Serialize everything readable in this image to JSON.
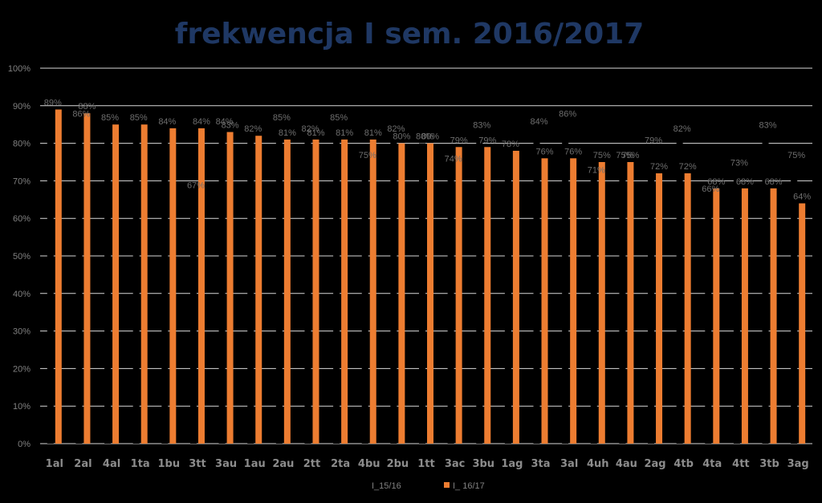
{
  "chart_data": {
    "type": "bar",
    "title": "frekwencja I sem. 2016/2017",
    "categories": [
      "1al",
      "2al",
      "4al",
      "1ta",
      "1bu",
      "3tt",
      "3au",
      "1au",
      "2au",
      "2tt",
      "2ta",
      "4bu",
      "2bu",
      "1tt",
      "3ac",
      "3bu",
      "1ag",
      "3ta",
      "3al",
      "4uh",
      "4au",
      "2ag",
      "4tb",
      "4ta",
      "4tt",
      "3tb",
      "3ag"
    ],
    "series": [
      {
        "name": "I_15/16",
        "color": "#000000",
        "values": [
          89,
          86,
          85,
          85,
          84,
          67,
          84,
          82,
          85,
          82,
          85,
          75,
          82,
          80,
          74,
          83,
          78,
          84,
          86,
          71,
          75,
          79,
          82,
          66,
          73,
          83,
          75
        ],
        "labels": [
          "89%",
          "86%",
          "85%",
          "85%",
          "84%",
          "67%",
          "84%",
          "82%",
          "85%",
          "82%",
          "85%",
          "75%",
          "82%",
          "80%",
          "74%",
          "83%",
          "78%",
          "84%",
          "86%",
          "71%",
          "75%",
          "79%",
          "82%",
          "66%",
          "73%",
          "83%",
          "75%"
        ]
      },
      {
        "name": "I_ 16/17",
        "color": "#ED7D31",
        "values": [
          89,
          88,
          85,
          85,
          84,
          84,
          83,
          82,
          81,
          81,
          81,
          81,
          80,
          80,
          79,
          79,
          78,
          76,
          76,
          75,
          75,
          72,
          72,
          68,
          68,
          68,
          64
        ],
        "labels": [
          "",
          "88%",
          "",
          "",
          "",
          "84%",
          "83%",
          "",
          "81%",
          "81%",
          "81%",
          "81%",
          "80%",
          "80%",
          "79%",
          "79%",
          "",
          "76%",
          "76%",
          "75%",
          "75%",
          "72%",
          "72%",
          "68%",
          "68%",
          "68%",
          "64%"
        ]
      }
    ],
    "ylim": [
      0,
      100
    ],
    "yticks": [
      "0%",
      "10%",
      "20%",
      "30%",
      "40%",
      "50%",
      "60%",
      "70%",
      "80%",
      "90%",
      "100%"
    ],
    "grid": true,
    "legend": "bottom-center"
  }
}
